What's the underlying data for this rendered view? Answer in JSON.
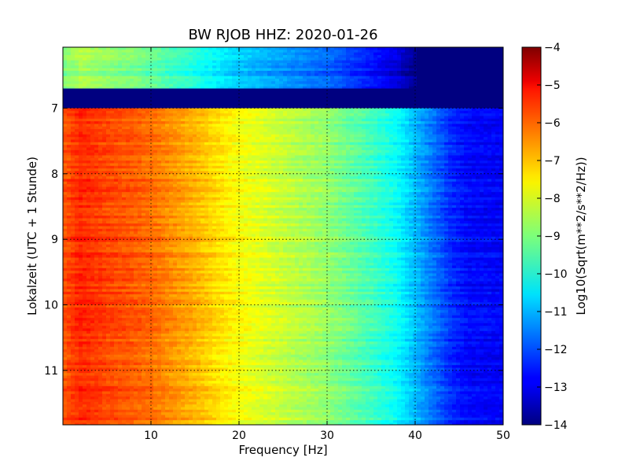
{
  "chart_data": {
    "type": "heatmap",
    "title": "BW RJOB HHZ: 2020-01-26",
    "xlabel": "Frequency [Hz]",
    "ylabel": "Lokalzeit (UTC + 1 Stunde)",
    "xlim": [
      0,
      50
    ],
    "ylim": [
      6.07,
      11.83
    ],
    "y_inverted": true,
    "x_ticks": [
      10,
      20,
      30,
      40,
      50
    ],
    "y_ticks": [
      7,
      8,
      9,
      10,
      11
    ],
    "grid": true,
    "colormap": "jet",
    "colorbar": {
      "label": "Log10(Sqrt(m**2/s**2/Hz))",
      "range": [
        -14,
        -4
      ],
      "ticks": [
        -4,
        -5,
        -6,
        -7,
        -8,
        -9,
        -10,
        -11,
        -12,
        -13,
        -14
      ]
    },
    "frequency_profile": {
      "freq": [
        0,
        2,
        5,
        8,
        10,
        12,
        15,
        18,
        20,
        25,
        30,
        35,
        38,
        40,
        42,
        44,
        46,
        50
      ],
      "value": [
        -6.1,
        -5.6,
        -5.9,
        -6.1,
        -6.3,
        -6.6,
        -7.0,
        -7.5,
        -7.8,
        -8.3,
        -8.8,
        -9.6,
        -10.2,
        -10.9,
        -11.6,
        -12.3,
        -12.7,
        -12.8
      ]
    },
    "time_segments": [
      {
        "start": 6.07,
        "end": 6.7,
        "offset": -3.0,
        "high_freq_floor_from": 40,
        "high_freq_floor_value": -14
      },
      {
        "start": 6.7,
        "end": 7.0,
        "offset": null,
        "fill_value": -14
      },
      {
        "start": 7.0,
        "end": 11.83,
        "offset": 0
      }
    ],
    "colors": {
      "axes_frame": "#000000",
      "grid": "#000000",
      "background": "#ffffff"
    }
  }
}
